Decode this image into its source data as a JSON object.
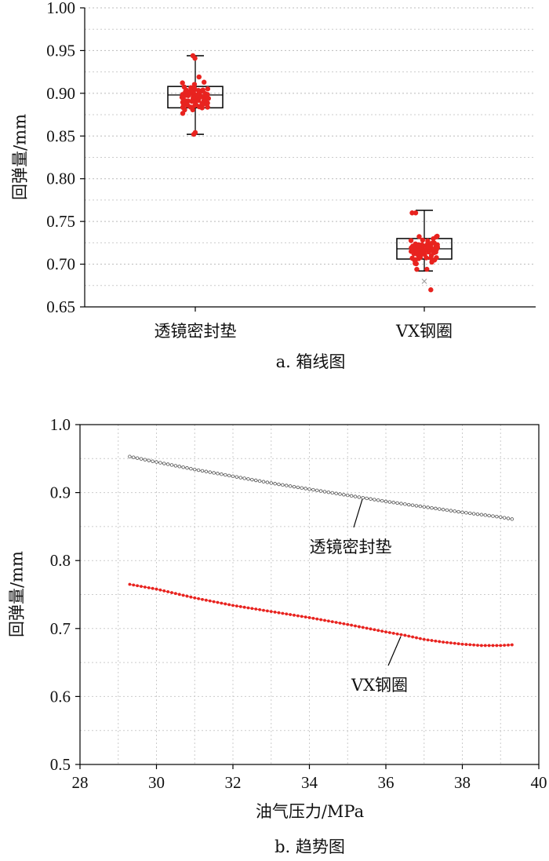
{
  "chart_data": [
    {
      "type": "box",
      "caption": "a. 箱线图",
      "ylabel": "回弹量/mm",
      "ylim": [
        0.65,
        1.0
      ],
      "yticks": [
        "0.65",
        "0.70",
        "0.75",
        "0.80",
        "0.85",
        "0.90",
        "0.95",
        "1.00"
      ],
      "grid": "horizontal dotted",
      "categories": [
        "透镜密封垫",
        "VX钢圈"
      ],
      "boxes": [
        {
          "name": "透镜密封垫",
          "whisker_low": 0.852,
          "q1": 0.883,
          "median": 0.898,
          "q3": 0.908,
          "whisker_high": 0.944,
          "points_range": [
            0.852,
            0.944
          ],
          "color": "#e8231f"
        },
        {
          "name": "VX钢圈",
          "whisker_low": 0.692,
          "q1": 0.706,
          "median": 0.718,
          "q3": 0.73,
          "whisker_high": 0.763,
          "points_range": [
            0.67,
            0.76
          ],
          "outliers": [
            0.68
          ],
          "color": "#e8231f"
        }
      ]
    },
    {
      "type": "line",
      "caption": "b. 趋势图",
      "xlabel": "油气压力/MPa",
      "ylabel": "回弹量/mm",
      "xlim": [
        28,
        40
      ],
      "ylim": [
        0.5,
        1.0
      ],
      "xticks": [
        "28",
        "30",
        "32",
        "34",
        "36",
        "38",
        "40"
      ],
      "yticks": [
        "0.5",
        "0.6",
        "0.7",
        "0.8",
        "0.9",
        "1.0"
      ],
      "grid": "dotted",
      "series": [
        {
          "name": "透镜密封垫",
          "color": "#666666",
          "marker": "open-circle",
          "points": [
            [
              29.3,
              0.953
            ],
            [
              30,
              0.945
            ],
            [
              31,
              0.934
            ],
            [
              32,
              0.924
            ],
            [
              33,
              0.914
            ],
            [
              34,
              0.905
            ],
            [
              35,
              0.896
            ],
            [
              36,
              0.887
            ],
            [
              37,
              0.879
            ],
            [
              38,
              0.871
            ],
            [
              39,
              0.864
            ],
            [
              39.3,
              0.861
            ]
          ]
        },
        {
          "name": "VX钢圈",
          "color": "#e8231f",
          "marker": "dot",
          "points": [
            [
              29.3,
              0.765
            ],
            [
              30,
              0.758
            ],
            [
              31,
              0.745
            ],
            [
              32,
              0.734
            ],
            [
              33,
              0.725
            ],
            [
              34,
              0.716
            ],
            [
              35,
              0.706
            ],
            [
              36,
              0.695
            ],
            [
              36.5,
              0.69
            ],
            [
              37,
              0.684
            ],
            [
              37.5,
              0.68
            ],
            [
              38,
              0.677
            ],
            [
              38.5,
              0.675
            ],
            [
              39,
              0.675
            ],
            [
              39.3,
              0.676
            ]
          ]
        }
      ]
    }
  ]
}
